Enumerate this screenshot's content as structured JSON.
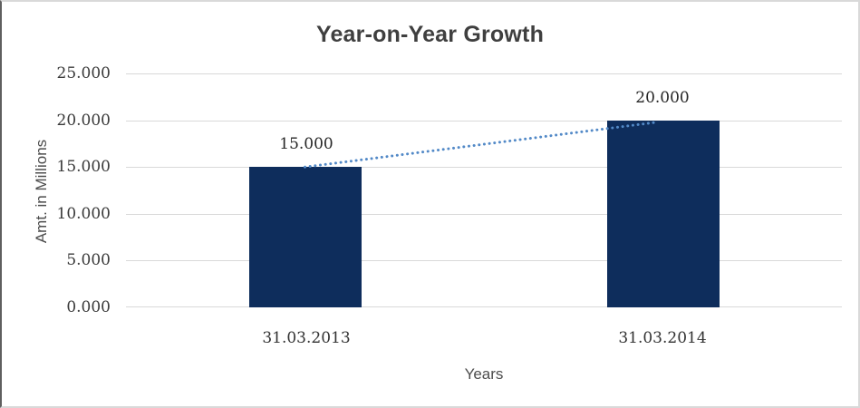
{
  "chart_data": {
    "type": "bar",
    "title": "Year-on-Year Growth",
    "xlabel": "Years",
    "ylabel": "Amt. in Millions",
    "categories": [
      "31.03.2013",
      "31.03.2014"
    ],
    "series": [
      {
        "name": "Amt. in Millions",
        "values": [
          15.0,
          20.0
        ]
      }
    ],
    "data_labels": [
      "15.000",
      "20.000"
    ],
    "yticks_top_to_bottom": [
      "25.000",
      "20.000",
      "15.000",
      "10.000",
      "5.000",
      "0.000"
    ],
    "ylim": [
      0,
      25
    ],
    "ytick_step": 5,
    "grid": true,
    "legend": "none",
    "trendline": {
      "style": "dotted",
      "from": 15.0,
      "to": 20.0
    },
    "colors": {
      "bar": "#0e2d5c",
      "trendline": "#5289c7",
      "gridline": "#d9d9d9",
      "title_text": "#3f3f3f",
      "axis_text": "#393939"
    }
  }
}
